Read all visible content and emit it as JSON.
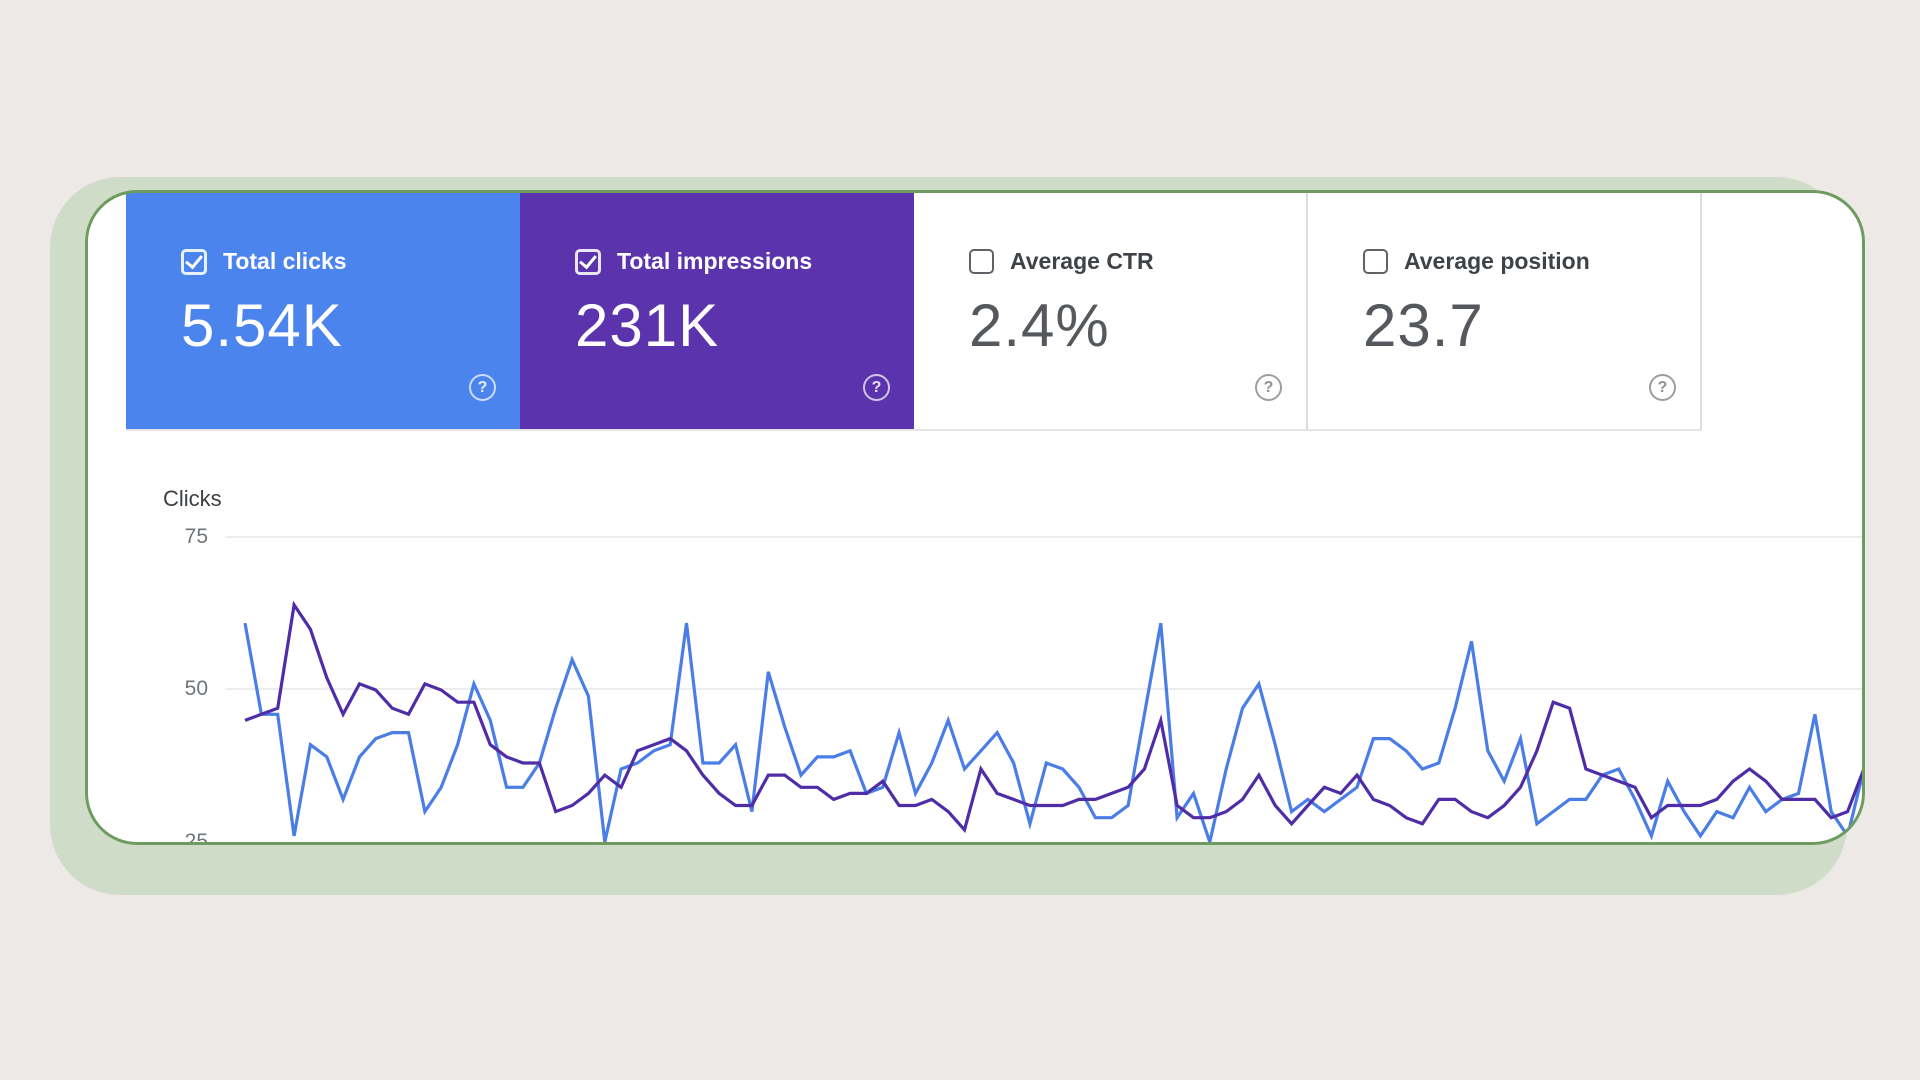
{
  "cards": [
    {
      "label": "Total clicks",
      "value": "5.54K",
      "checked": true
    },
    {
      "label": "Total impressions",
      "value": "231K",
      "checked": true
    },
    {
      "label": "Average CTR",
      "value": "2.4%",
      "checked": false
    },
    {
      "label": "Average position",
      "value": "23.7",
      "checked": false
    }
  ],
  "help_symbol": "?",
  "chart": {
    "ylabel": "Clicks",
    "yticks": [
      "75",
      "50",
      "25"
    ]
  },
  "colors": {
    "background": "#ece9e7",
    "panel_shadow": "#cfddc8",
    "panel_border": "#6e9c60",
    "clicks_card": "#4a84ec",
    "impressions_card": "#5b34ad",
    "clicks_line": "#4a7de6",
    "impressions_line": "#4f2da6",
    "gridline": "#ededed"
  },
  "chart_data": {
    "type": "line",
    "title": "Clicks",
    "ylabel": "Clicks",
    "visible_y_range": [
      25,
      75
    ],
    "y_gridlines": [
      75,
      50,
      25
    ],
    "x_tick_labels_visible": false,
    "grid": "horizontal only",
    "legend": "metric cards act as legend (Total clicks = blue, Total impressions = purple)",
    "note": "Impressions series values are the plotted positions read against the visible Clicks axis; summary totals shown in cards: 5.54K clicks, 231K impressions, 2.4% CTR, position 23.7. Bottom tick (25) and dips below it are clipped by the panel edge.",
    "series": [
      {
        "name": "Total clicks",
        "color": "#4a7de6",
        "values": [
          61,
          46,
          46,
          26,
          41,
          39,
          32,
          39,
          42,
          43,
          43,
          30,
          34,
          41,
          51,
          45,
          34,
          34,
          38,
          47,
          55,
          49,
          25,
          37,
          38,
          40,
          41,
          61,
          38,
          38,
          41,
          30,
          53,
          44,
          36,
          39,
          39,
          40,
          33,
          34,
          43,
          33,
          38,
          45,
          37,
          40,
          43,
          38,
          28,
          38,
          37,
          34,
          29,
          29,
          31,
          46,
          61,
          29,
          33,
          25,
          37,
          47,
          51,
          41,
          30,
          32,
          30,
          32,
          34,
          42,
          42,
          40,
          37,
          38,
          47,
          58,
          40,
          35,
          42,
          28,
          30,
          32,
          32,
          36,
          37,
          32,
          26,
          35,
          30,
          26,
          30,
          29,
          34,
          30,
          32,
          33,
          46,
          30,
          26,
          37
        ]
      },
      {
        "name": "Total impressions",
        "color": "#4f2da6",
        "values": [
          45,
          46,
          47,
          64,
          60,
          52,
          46,
          51,
          50,
          47,
          46,
          51,
          50,
          48,
          48,
          41,
          39,
          38,
          38,
          30,
          31,
          33,
          36,
          34,
          40,
          41,
          42,
          40,
          36,
          33,
          31,
          31,
          36,
          36,
          34,
          34,
          32,
          33,
          33,
          35,
          31,
          31,
          32,
          30,
          27,
          37,
          33,
          32,
          31,
          31,
          31,
          32,
          32,
          33,
          34,
          37,
          45,
          31,
          29,
          29,
          30,
          32,
          36,
          31,
          28,
          31,
          34,
          33,
          36,
          32,
          31,
          29,
          28,
          32,
          32,
          30,
          29,
          31,
          34,
          40,
          48,
          47,
          37,
          36,
          35,
          34,
          29,
          31,
          31,
          31,
          32,
          35,
          37,
          35,
          32,
          32,
          32,
          29,
          30,
          37
        ]
      }
    ]
  }
}
